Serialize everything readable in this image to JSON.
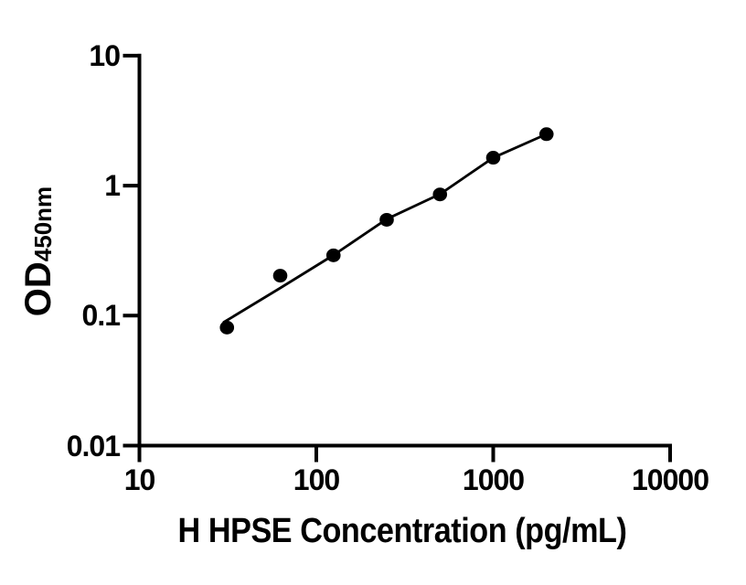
{
  "figure": {
    "background_color": "#ffffff",
    "ink_color": "#000000"
  },
  "chart_data": {
    "type": "scatter",
    "subtype": "elisa-standard-curve",
    "title": "",
    "xlabel": "H HPSE Concentration (pg/mL)",
    "ylabel_main": "OD",
    "ylabel_sub": "450nm",
    "x_scale": "log10",
    "y_scale": "log10",
    "xlim": [
      10,
      10000
    ],
    "ylim": [
      0.01,
      10
    ],
    "grid": false,
    "legend": false,
    "x_ticks": [
      {
        "value": 10,
        "label": "10"
      },
      {
        "value": 100,
        "label": "100"
      },
      {
        "value": 1000,
        "label": "1000"
      },
      {
        "value": 10000,
        "label": "10000"
      }
    ],
    "y_ticks": [
      {
        "value": 10,
        "label": "10"
      },
      {
        "value": 1,
        "label": "1"
      },
      {
        "value": 0.1,
        "label": "0.1"
      },
      {
        "value": 0.01,
        "label": "0.01"
      }
    ],
    "series": [
      {
        "name": "standard-points",
        "marker": "filled-circle",
        "marker_color": "#000000",
        "points": [
          {
            "x": 31.25,
            "y": 0.081
          },
          {
            "x": 62.5,
            "y": 0.203
          },
          {
            "x": 125,
            "y": 0.291
          },
          {
            "x": 250,
            "y": 0.546
          },
          {
            "x": 500,
            "y": 0.856
          },
          {
            "x": 1000,
            "y": 1.64
          },
          {
            "x": 2000,
            "y": 2.49
          }
        ]
      }
    ],
    "fit_line": {
      "name": "fitted-curve",
      "color": "#000000",
      "points": [
        {
          "x": 30,
          "y": 0.089
        },
        {
          "x": 62.5,
          "y": 0.163
        },
        {
          "x": 125,
          "y": 0.292
        },
        {
          "x": 250,
          "y": 0.553
        },
        {
          "x": 500,
          "y": 0.86
        },
        {
          "x": 1000,
          "y": 1.64
        },
        {
          "x": 2000,
          "y": 2.49
        }
      ]
    }
  }
}
